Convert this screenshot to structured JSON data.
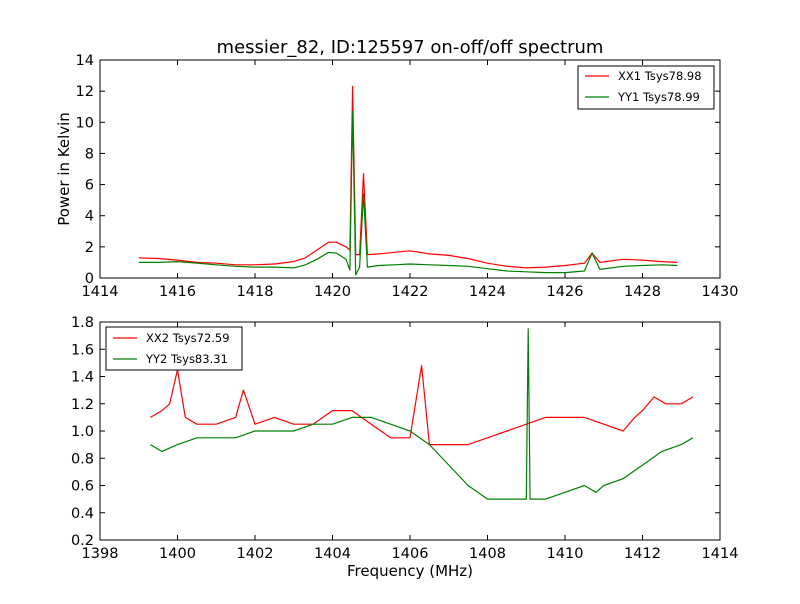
{
  "chart_data": [
    {
      "type": "line",
      "title": "messier_82, ID:125597 on-off/off spectrum",
      "xlabel": "",
      "ylabel": "Power in Kelvin",
      "xlim": [
        1414,
        1430
      ],
      "ylim": [
        0,
        14
      ],
      "xticks": [
        1414,
        1416,
        1418,
        1420,
        1422,
        1424,
        1426,
        1428,
        1430
      ],
      "yticks": [
        0,
        2,
        4,
        6,
        8,
        10,
        12,
        14
      ],
      "legend_position": "top-right",
      "series": [
        {
          "name": "XX1 Tsys78.98",
          "color": "#ff0000",
          "points": [
            [
              1415.0,
              1.3
            ],
            [
              1415.5,
              1.25
            ],
            [
              1416.0,
              1.15
            ],
            [
              1416.5,
              1.0
            ],
            [
              1417.0,
              0.95
            ],
            [
              1417.5,
              0.85
            ],
            [
              1418.0,
              0.85
            ],
            [
              1418.5,
              0.9
            ],
            [
              1419.0,
              1.05
            ],
            [
              1419.3,
              1.3
            ],
            [
              1419.6,
              1.8
            ],
            [
              1419.9,
              2.3
            ],
            [
              1420.1,
              2.3
            ],
            [
              1420.35,
              2.0
            ],
            [
              1420.45,
              1.8
            ],
            [
              1420.52,
              12.3
            ],
            [
              1420.6,
              1.5
            ],
            [
              1420.7,
              1.5
            ],
            [
              1420.8,
              6.7
            ],
            [
              1420.9,
              1.5
            ],
            [
              1421.2,
              1.55
            ],
            [
              1421.6,
              1.65
            ],
            [
              1422.0,
              1.75
            ],
            [
              1422.5,
              1.55
            ],
            [
              1423.0,
              1.45
            ],
            [
              1423.5,
              1.25
            ],
            [
              1424.0,
              0.95
            ],
            [
              1424.5,
              0.75
            ],
            [
              1425.0,
              0.65
            ],
            [
              1425.5,
              0.7
            ],
            [
              1426.0,
              0.8
            ],
            [
              1426.5,
              0.95
            ],
            [
              1426.7,
              1.6
            ],
            [
              1426.9,
              1.0
            ],
            [
              1427.5,
              1.2
            ],
            [
              1428.0,
              1.15
            ],
            [
              1428.5,
              1.05
            ],
            [
              1428.9,
              1.0
            ]
          ]
        },
        {
          "name": "YY1 Tsys78.99",
          "color": "#008000",
          "points": [
            [
              1415.0,
              1.0
            ],
            [
              1415.5,
              1.0
            ],
            [
              1416.0,
              1.05
            ],
            [
              1416.5,
              0.95
            ],
            [
              1417.0,
              0.85
            ],
            [
              1417.5,
              0.75
            ],
            [
              1418.0,
              0.7
            ],
            [
              1418.5,
              0.7
            ],
            [
              1419.0,
              0.65
            ],
            [
              1419.3,
              0.85
            ],
            [
              1419.6,
              1.2
            ],
            [
              1419.9,
              1.65
            ],
            [
              1420.1,
              1.6
            ],
            [
              1420.35,
              1.2
            ],
            [
              1420.45,
              0.5
            ],
            [
              1420.52,
              10.7
            ],
            [
              1420.6,
              0.2
            ],
            [
              1420.7,
              0.7
            ],
            [
              1420.8,
              5.4
            ],
            [
              1420.9,
              0.7
            ],
            [
              1421.2,
              0.8
            ],
            [
              1421.6,
              0.85
            ],
            [
              1422.0,
              0.9
            ],
            [
              1422.5,
              0.85
            ],
            [
              1423.0,
              0.8
            ],
            [
              1423.5,
              0.75
            ],
            [
              1424.0,
              0.6
            ],
            [
              1424.5,
              0.45
            ],
            [
              1425.0,
              0.4
            ],
            [
              1425.5,
              0.35
            ],
            [
              1426.0,
              0.35
            ],
            [
              1426.5,
              0.45
            ],
            [
              1426.7,
              1.6
            ],
            [
              1426.9,
              0.55
            ],
            [
              1427.5,
              0.75
            ],
            [
              1428.0,
              0.8
            ],
            [
              1428.5,
              0.85
            ],
            [
              1428.9,
              0.8
            ]
          ]
        }
      ]
    },
    {
      "type": "line",
      "title": "",
      "xlabel": "Frequency (MHz)",
      "ylabel": "",
      "xlim": [
        1398,
        1414
      ],
      "ylim": [
        0.2,
        1.8
      ],
      "xticks": [
        1398,
        1400,
        1402,
        1404,
        1406,
        1408,
        1410,
        1412,
        1414
      ],
      "yticks": [
        0.2,
        0.4,
        0.6,
        0.8,
        1.0,
        1.2,
        1.4,
        1.6,
        1.8
      ],
      "legend_position": "top-left",
      "series": [
        {
          "name": "XX2 Tsys72.59",
          "color": "#ff0000",
          "points": [
            [
              1399.3,
              1.1
            ],
            [
              1399.6,
              1.15
            ],
            [
              1399.8,
              1.2
            ],
            [
              1400.0,
              1.45
            ],
            [
              1400.2,
              1.1
            ],
            [
              1400.5,
              1.05
            ],
            [
              1401.0,
              1.05
            ],
            [
              1401.5,
              1.1
            ],
            [
              1401.7,
              1.3
            ],
            [
              1402.0,
              1.05
            ],
            [
              1402.5,
              1.1
            ],
            [
              1403.0,
              1.05
            ],
            [
              1403.5,
              1.05
            ],
            [
              1404.0,
              1.15
            ],
            [
              1404.5,
              1.15
            ],
            [
              1405.0,
              1.05
            ],
            [
              1405.5,
              0.95
            ],
            [
              1406.0,
              0.95
            ],
            [
              1406.3,
              1.48
            ],
            [
              1406.5,
              0.9
            ],
            [
              1407.0,
              0.9
            ],
            [
              1407.5,
              0.9
            ],
            [
              1408.0,
              0.95
            ],
            [
              1408.5,
              1.0
            ],
            [
              1409.0,
              1.05
            ],
            [
              1409.5,
              1.1
            ],
            [
              1410.0,
              1.1
            ],
            [
              1410.5,
              1.1
            ],
            [
              1411.0,
              1.05
            ],
            [
              1411.5,
              1.0
            ],
            [
              1411.8,
              1.1
            ],
            [
              1412.0,
              1.15
            ],
            [
              1412.3,
              1.25
            ],
            [
              1412.6,
              1.2
            ],
            [
              1413.0,
              1.2
            ],
            [
              1413.3,
              1.25
            ]
          ]
        },
        {
          "name": "YY2 Tsys83.31",
          "color": "#008000",
          "points": [
            [
              1399.3,
              0.9
            ],
            [
              1399.6,
              0.85
            ],
            [
              1400.0,
              0.9
            ],
            [
              1400.5,
              0.95
            ],
            [
              1401.0,
              0.95
            ],
            [
              1401.5,
              0.95
            ],
            [
              1402.0,
              1.0
            ],
            [
              1402.5,
              1.0
            ],
            [
              1403.0,
              1.0
            ],
            [
              1403.5,
              1.05
            ],
            [
              1404.0,
              1.05
            ],
            [
              1404.5,
              1.1
            ],
            [
              1405.0,
              1.1
            ],
            [
              1405.5,
              1.05
            ],
            [
              1406.0,
              1.0
            ],
            [
              1406.5,
              0.9
            ],
            [
              1407.0,
              0.75
            ],
            [
              1407.5,
              0.6
            ],
            [
              1408.0,
              0.5
            ],
            [
              1408.5,
              0.5
            ],
            [
              1409.0,
              0.5
            ],
            [
              1409.05,
              1.75
            ],
            [
              1409.1,
              0.5
            ],
            [
              1409.5,
              0.5
            ],
            [
              1410.0,
              0.55
            ],
            [
              1410.5,
              0.6
            ],
            [
              1410.8,
              0.55
            ],
            [
              1411.0,
              0.6
            ],
            [
              1411.5,
              0.65
            ],
            [
              1412.0,
              0.75
            ],
            [
              1412.5,
              0.85
            ],
            [
              1413.0,
              0.9
            ],
            [
              1413.3,
              0.95
            ]
          ]
        }
      ]
    }
  ]
}
